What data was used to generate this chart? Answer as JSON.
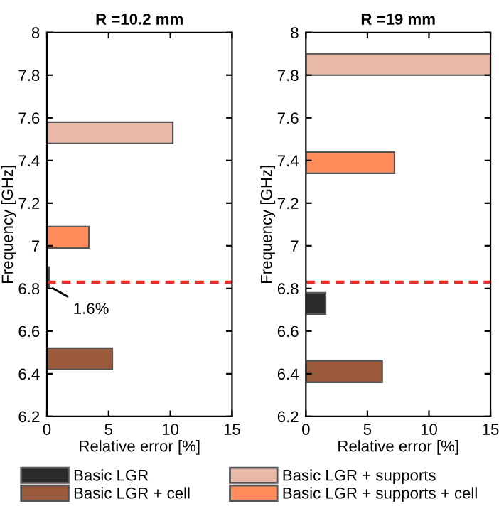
{
  "chart_data": [
    {
      "type": "bar",
      "orientation": "horizontal",
      "title": "R =10.2 mm",
      "xlabel": "Relative error [%]",
      "ylabel": "Frequency [GHz]",
      "xlim": [
        0,
        15
      ],
      "xticks": [
        0,
        5,
        10,
        15
      ],
      "ylim": [
        6.2,
        8
      ],
      "yticks": [
        6.2,
        6.4,
        6.6,
        6.8,
        7,
        7.2,
        7.4,
        7.6,
        7.8,
        8
      ],
      "grid": false,
      "legend": "bottom",
      "series": [
        {
          "name": "Basic LGR",
          "color": "#2b2b2e",
          "x": [
            6.85
          ],
          "values": [
            0.2
          ]
        },
        {
          "name": "Basic LGR + cell",
          "color": "#9c5a3c",
          "x": [
            6.47
          ],
          "values": [
            5.3
          ]
        },
        {
          "name": "Basic LGR + supports",
          "color": "#e8b9a8",
          "x": [
            7.53
          ],
          "values": [
            10.2
          ]
        },
        {
          "name": "Basic LGR + supports + cell",
          "color": "#ff8c5a",
          "x": [
            7.04
          ],
          "values": [
            3.4
          ]
        }
      ],
      "ref_lines": [
        {
          "axis": "y",
          "value": 6.83,
          "color": "#e8302a",
          "line_style": "dashed"
        }
      ],
      "annotations": [
        {
          "text": "1.6%",
          "x": 0.2,
          "y": 6.81
        }
      ]
    },
    {
      "type": "bar",
      "orientation": "horizontal",
      "title": "R =19 mm",
      "xlabel": "Relative error [%]",
      "ylabel": "Frequency [GHz]",
      "xlim": [
        0,
        15
      ],
      "xticks": [
        0,
        5,
        10,
        15
      ],
      "ylim": [
        6.2,
        8
      ],
      "yticks": [
        6.2,
        6.4,
        6.6,
        6.8,
        7,
        7.2,
        7.4,
        7.6,
        7.8,
        8
      ],
      "grid": false,
      "series": [
        {
          "color": "#2b2b2e",
          "x": [
            6.73
          ],
          "values": [
            1.6
          ]
        },
        {
          "color": "#9c5a3c",
          "x": [
            6.41
          ],
          "values": [
            6.2
          ]
        },
        {
          "color": "#e8b9a8",
          "x": [
            7.85
          ],
          "values": [
            15
          ]
        },
        {
          "color": "#ff8c5a",
          "x": [
            7.39
          ],
          "values": [
            7.2
          ]
        }
      ],
      "ref_lines": [
        {
          "axis": "y",
          "value": 6.83,
          "color": "#e8302a",
          "line_style": "dashed"
        }
      ]
    }
  ]
}
